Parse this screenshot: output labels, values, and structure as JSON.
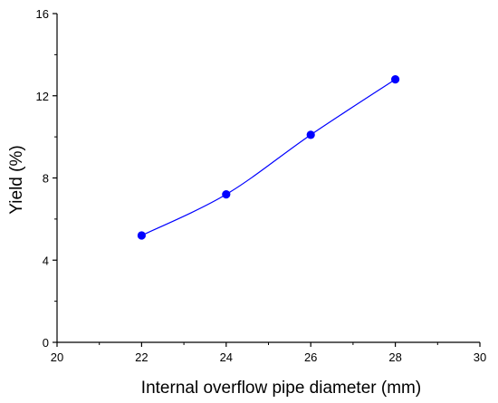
{
  "chart_data": {
    "type": "line",
    "title": "",
    "xlabel": "Internal overflow pipe diameter (mm)",
    "ylabel": "Yield (%)",
    "xlim": [
      20,
      30
    ],
    "ylim": [
      0,
      16
    ],
    "xticks": [
      20,
      22,
      24,
      26,
      28,
      30
    ],
    "yticks": [
      0,
      4,
      8,
      12,
      16
    ],
    "grid": false,
    "series": [
      {
        "x": [
          22,
          24,
          26,
          28
        ],
        "y": [
          5.2,
          7.2,
          10.1,
          12.8
        ]
      }
    ],
    "line_color": "#0000ff",
    "marker_color": "#0000ff",
    "smooth": true
  }
}
